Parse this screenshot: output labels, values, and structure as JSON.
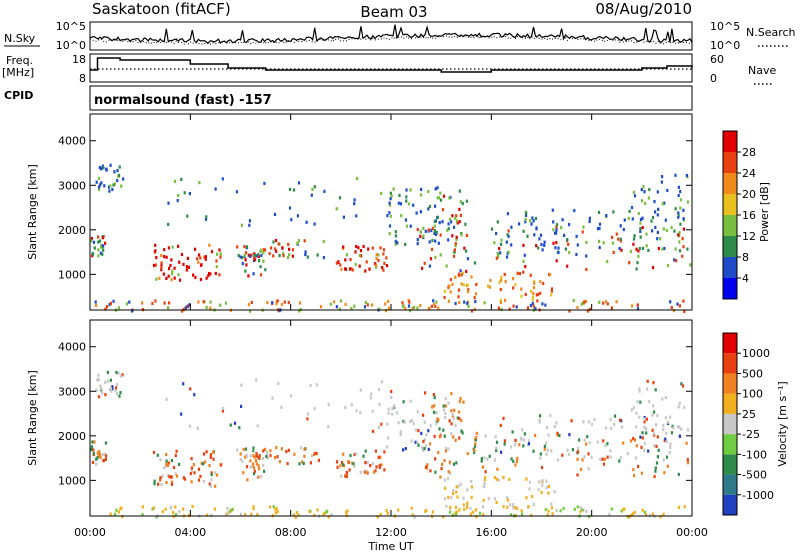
{
  "header": {
    "title": "Saskatoon (fitACF)",
    "beam": "Beam 03",
    "date": "08/Aug/2010",
    "cpid_label": "CPID",
    "cpid_value": "normalsound (fast) -157"
  },
  "summary_panels": {
    "noise": {
      "left_label": "N.Sky",
      "right_label": "N.Search",
      "left_ticks": [
        "10^5",
        "10^0"
      ],
      "right_ticks": [
        "10^5",
        "10^0"
      ]
    },
    "frequency": {
      "left_label_1": "Freq.",
      "left_label_2": "[MHz]",
      "right_label": "Nave",
      "left_ticks": [
        "18",
        "8"
      ],
      "right_ticks": [
        "60",
        "0"
      ]
    }
  },
  "chart_data": [
    {
      "type": "heatmap",
      "name": "power",
      "ylabel": "Slant Range [km]",
      "xlabel": "",
      "ylim": [
        200,
        4600
      ],
      "y_ticks": [
        "1000",
        "2000",
        "3000",
        "4000"
      ],
      "colorbar": {
        "label": "Power [dB]",
        "ticks": [
          "4",
          "8",
          "12",
          "16",
          "20",
          "24",
          "28"
        ],
        "colors": [
          "#0000ee",
          "#1e4cc6",
          "#2e8b4a",
          "#79be3e",
          "#e8c020",
          "#f08a1a",
          "#e84010",
          "#e00000"
        ]
      }
    },
    {
      "type": "heatmap",
      "name": "velocity",
      "ylabel": "Slant Range [km]",
      "xlabel": "Time UT",
      "ylim": [
        200,
        4600
      ],
      "y_ticks": [
        "1000",
        "2000",
        "3000",
        "4000"
      ],
      "x_ticks": [
        "00:00",
        "04:00",
        "08:00",
        "12:00",
        "16:00",
        "20:00",
        "00:00"
      ],
      "colorbar": {
        "label": "Velocity [m s⁻¹]",
        "ticks": [
          "1000",
          "500",
          "100",
          "25",
          "-25",
          "-100",
          "-500",
          "-1000"
        ],
        "colors": [
          "#2040c0",
          "#2e7a8a",
          "#2e8b4a",
          "#70cc40",
          "#c8c8c8",
          "#f0b020",
          "#f08020",
          "#e84010",
          "#e00000"
        ]
      }
    }
  ]
}
